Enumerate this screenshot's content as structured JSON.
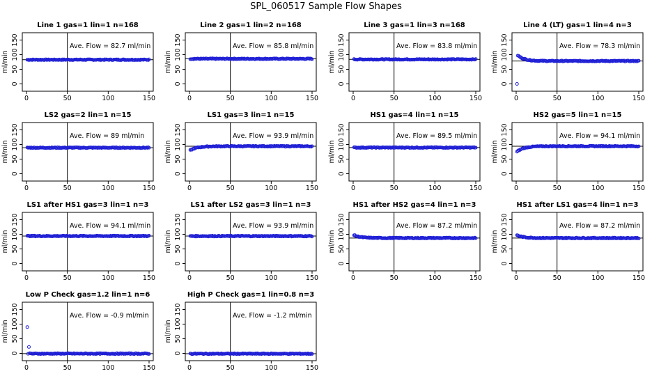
{
  "title": "SPL_060517  Sample Flow Shapes",
  "ylabel": "ml/min",
  "colors": {
    "points": "#1f1fd6",
    "axis": "#000000"
  },
  "chart_data": [
    {
      "type": "scatter",
      "title": "Line 1 gas=1 lin=1 n=168",
      "annotation": "Ave. Flow =  82.7  ml/min",
      "ave": 82.7,
      "start": 82.7,
      "xlim": [
        0,
        150
      ],
      "ylim": [
        -25,
        175
      ],
      "xticks": [
        0,
        50,
        100,
        150
      ],
      "yticks": [
        0,
        50,
        100,
        150
      ],
      "vline": 50
    },
    {
      "type": "scatter",
      "title": "Line 2 gas=1 lin=2 n=168",
      "annotation": "Ave. Flow =  85.8  ml/min",
      "ave": 85.8,
      "start": 85.8,
      "xlim": [
        0,
        150
      ],
      "ylim": [
        -25,
        175
      ],
      "xticks": [
        0,
        50,
        100,
        150
      ],
      "yticks": [
        0,
        50,
        100,
        150
      ],
      "vline": 50
    },
    {
      "type": "scatter",
      "title": "Line 3 gas=1 lin=3 n=168",
      "annotation": "Ave. Flow =  83.8  ml/min",
      "ave": 83.8,
      "start": 83.8,
      "xlim": [
        0,
        150
      ],
      "ylim": [
        -25,
        175
      ],
      "xticks": [
        0,
        50,
        100,
        150
      ],
      "yticks": [
        0,
        50,
        100,
        150
      ],
      "vline": 50
    },
    {
      "type": "scatter",
      "title": "Line 4 (LT) gas=1 lin=4 n=3",
      "annotation": "Ave. Flow =  78.3  ml/min",
      "ave": 78.3,
      "start": 100,
      "first": 0,
      "xlim": [
        0,
        150
      ],
      "ylim": [
        -25,
        175
      ],
      "xticks": [
        0,
        50,
        100,
        150
      ],
      "yticks": [
        0,
        50,
        100,
        150
      ],
      "vline": 50
    },
    {
      "type": "scatter",
      "title": "LS2 gas=2 lin=1 n=15",
      "annotation": "Ave. Flow =  89  ml/min",
      "ave": 89,
      "start": 89,
      "xlim": [
        0,
        150
      ],
      "ylim": [
        -25,
        175
      ],
      "xticks": [
        0,
        50,
        100,
        150
      ],
      "yticks": [
        0,
        50,
        100,
        150
      ],
      "vline": 50
    },
    {
      "type": "scatter",
      "title": "LS1 gas=3 lin=1 n=15",
      "annotation": "Ave. Flow =  93.9  ml/min",
      "ave": 93.9,
      "start": 80,
      "xlim": [
        0,
        150
      ],
      "ylim": [
        -25,
        175
      ],
      "xticks": [
        0,
        50,
        100,
        150
      ],
      "yticks": [
        0,
        50,
        100,
        150
      ],
      "vline": 50
    },
    {
      "type": "scatter",
      "title": "HS1 gas=4 lin=1 n=15",
      "annotation": "Ave. Flow =  89.5  ml/min",
      "ave": 89.5,
      "start": 89.5,
      "xlim": [
        0,
        150
      ],
      "ylim": [
        -25,
        175
      ],
      "xticks": [
        0,
        50,
        100,
        150
      ],
      "yticks": [
        0,
        50,
        100,
        150
      ],
      "vline": 50
    },
    {
      "type": "scatter",
      "title": "HS2 gas=5 lin=1 n=15",
      "annotation": "Ave. Flow =  94.1  ml/min",
      "ave": 94.1,
      "start": 75,
      "xlim": [
        0,
        150
      ],
      "ylim": [
        -25,
        175
      ],
      "xticks": [
        0,
        50,
        100,
        150
      ],
      "yticks": [
        0,
        50,
        100,
        150
      ],
      "vline": 50
    },
    {
      "type": "scatter",
      "title": "LS1 after HS1 gas=3 lin=1 n=3",
      "annotation": "Ave. Flow =  94.1  ml/min",
      "ave": 94.1,
      "start": 94.1,
      "xlim": [
        0,
        150
      ],
      "ylim": [
        -25,
        175
      ],
      "xticks": [
        0,
        50,
        100,
        150
      ],
      "yticks": [
        0,
        50,
        100,
        150
      ],
      "vline": 50
    },
    {
      "type": "scatter",
      "title": "LS1 after LS2 gas=3 lin=1 n=3",
      "annotation": "Ave. Flow =  93.9  ml/min",
      "ave": 93.9,
      "start": 93.9,
      "xlim": [
        0,
        150
      ],
      "ylim": [
        -25,
        175
      ],
      "xticks": [
        0,
        50,
        100,
        150
      ],
      "yticks": [
        0,
        50,
        100,
        150
      ],
      "vline": 50
    },
    {
      "type": "scatter",
      "title": "HS1 after HS2 gas=4 lin=1 n=3",
      "annotation": "Ave. Flow =  87.2  ml/min",
      "ave": 87.2,
      "start": 97,
      "xlim": [
        0,
        150
      ],
      "ylim": [
        -25,
        175
      ],
      "xticks": [
        0,
        50,
        100,
        150
      ],
      "yticks": [
        0,
        50,
        100,
        150
      ],
      "vline": 50
    },
    {
      "type": "scatter",
      "title": "HS1 after LS1 gas=4 lin=1 n=3",
      "annotation": "Ave. Flow =  87.2  ml/min",
      "ave": 87.2,
      "start": 97,
      "xlim": [
        0,
        150
      ],
      "ylim": [
        -25,
        175
      ],
      "xticks": [
        0,
        50,
        100,
        150
      ],
      "yticks": [
        0,
        50,
        100,
        150
      ],
      "vline": 50
    },
    {
      "type": "scatter",
      "title": "Low P Check gas=1.2 lin=1 n=6",
      "annotation": "Ave. Flow =  -0.9  ml/min",
      "ave": -0.9,
      "start": -0.9,
      "first": 90,
      "second": 22,
      "xlim": [
        0,
        150
      ],
      "ylim": [
        -25,
        175
      ],
      "xticks": [
        0,
        50,
        100,
        150
      ],
      "yticks": [
        0,
        50,
        100,
        150
      ],
      "vline": 50
    },
    {
      "type": "scatter",
      "title": "High P Check gas=1 lin=0.8 n=3",
      "annotation": "Ave. Flow =  -1.2  ml/min",
      "ave": -1.2,
      "start": -1.2,
      "xlim": [
        0,
        150
      ],
      "ylim": [
        -25,
        175
      ],
      "xticks": [
        0,
        50,
        100,
        150
      ],
      "yticks": [
        0,
        50,
        100,
        150
      ],
      "vline": 50
    }
  ]
}
